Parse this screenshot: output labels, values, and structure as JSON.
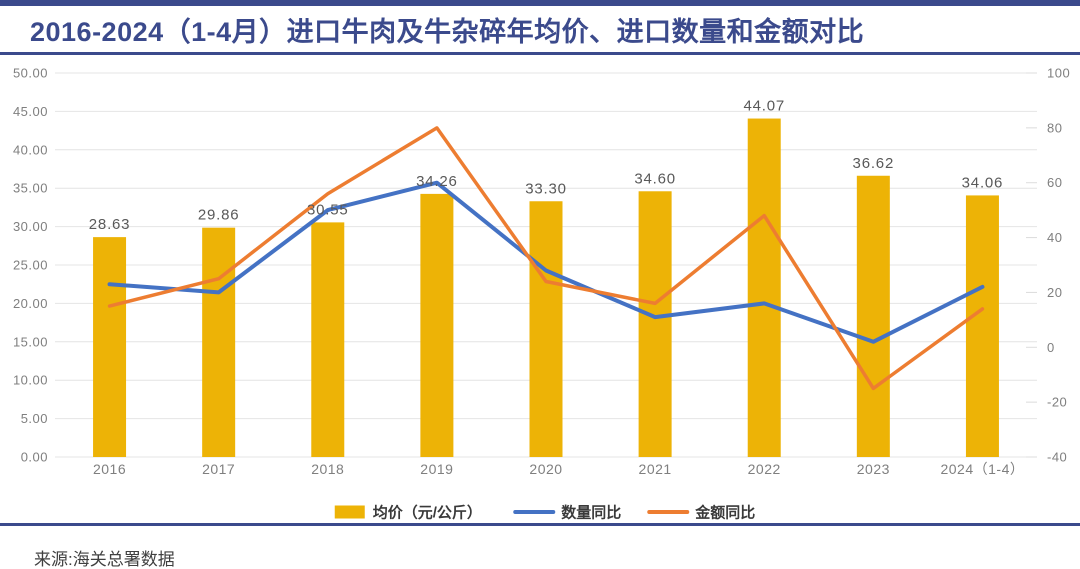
{
  "page": {
    "title": "2016-2024（1-4月）进口牛肉及牛杂碎年均价、进口数量和金额对比",
    "source": "来源:海关总署数据"
  },
  "colors": {
    "accent_navy": "#3B4A8C",
    "bar_gold": "#EDB306",
    "quantity_blue": "#4472C4",
    "amount_orange": "#ED7D31",
    "grid_gray": "#E4E4E4",
    "axis_text_gray": "#7F7F7F",
    "data_label_gray": "#595959"
  },
  "chart_data": {
    "type": "combo",
    "title": "2016-2024（1-4月）进口牛肉及牛杂碎年均价、进口数量和金额对比",
    "categories": [
      "2016",
      "2017",
      "2018",
      "2019",
      "2020",
      "2021",
      "2022",
      "2023",
      "2024（1-4）"
    ],
    "series": [
      {
        "name": "均价（元/公斤）",
        "type": "bar",
        "axis": "left",
        "values": [
          28.63,
          29.86,
          30.55,
          34.26,
          33.3,
          34.6,
          44.07,
          36.62,
          34.06
        ],
        "labels": [
          "28.63",
          "29.86",
          "30.55",
          "34.26",
          "33.30",
          "34.60",
          "44.07",
          "36.62",
          "34.06"
        ]
      },
      {
        "name": "数量同比",
        "type": "line",
        "axis": "right",
        "values": [
          23,
          20,
          50,
          60,
          28,
          11,
          16,
          2,
          22
        ]
      },
      {
        "name": "金额同比",
        "type": "line",
        "axis": "right",
        "values": [
          15,
          25,
          56,
          80,
          24,
          16,
          48,
          -15,
          14
        ]
      }
    ],
    "left_axis": {
      "min": 0,
      "max": 50,
      "ticks": [
        "0.00",
        "5.00",
        "10.00",
        "15.00",
        "20.00",
        "25.00",
        "30.00",
        "35.00",
        "40.00",
        "45.00",
        "50.00"
      ]
    },
    "right_axis": {
      "min": -40,
      "max": 100,
      "ticks": [
        "-40",
        "-20",
        "0",
        "20",
        "40",
        "60",
        "80",
        "100"
      ]
    },
    "grid": true,
    "legend_position": "bottom",
    "value_labels_on_bars": true
  }
}
